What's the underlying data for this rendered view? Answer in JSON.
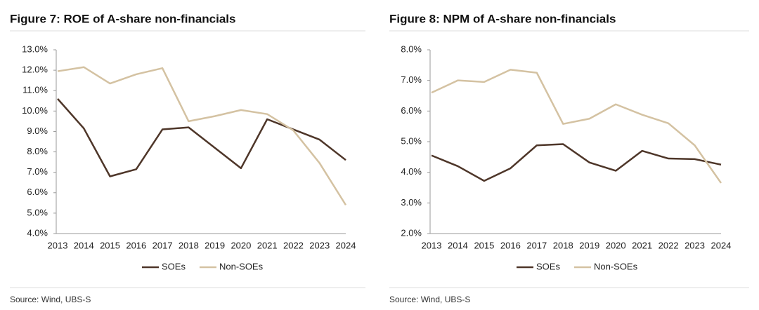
{
  "chart_data": [
    {
      "type": "line",
      "title": "Figure 7: ROE of A-share non-financials",
      "categories": [
        "2013",
        "2014",
        "2015",
        "2016",
        "2017",
        "2018",
        "2019",
        "2020",
        "2021",
        "2022",
        "2023",
        "2024"
      ],
      "series": [
        {
          "name": "SOEs",
          "color": "#4e3629",
          "values": [
            10.6,
            9.15,
            6.8,
            7.15,
            9.1,
            9.2,
            8.2,
            7.2,
            9.6,
            9.1,
            8.6,
            7.6
          ]
        },
        {
          "name": "Non-SOEs",
          "color": "#d4c2a2",
          "values": [
            11.95,
            12.15,
            11.35,
            11.8,
            12.1,
            9.5,
            9.75,
            10.05,
            9.85,
            9.05,
            7.45,
            5.4
          ]
        }
      ],
      "ylim": [
        4,
        13
      ],
      "yticks": [
        {
          "value": 4,
          "label": "4.0%"
        },
        {
          "value": 5,
          "label": "5.0%"
        },
        {
          "value": 6,
          "label": "6.0%"
        },
        {
          "value": 7,
          "label": "7.0%"
        },
        {
          "value": 8,
          "label": "8.0%"
        },
        {
          "value": 9,
          "label": "9.0%"
        },
        {
          "value": 10,
          "label": "10.0%"
        },
        {
          "value": 11,
          "label": "11.0%"
        },
        {
          "value": 12,
          "label": "12.0%"
        },
        {
          "value": 13,
          "label": "13.0%"
        }
      ],
      "grid": false,
      "legend": "bottom",
      "source": "Source: Wind, UBS-S"
    },
    {
      "type": "line",
      "title": "Figure 8: NPM of A-share non-financials",
      "categories": [
        "2013",
        "2014",
        "2015",
        "2016",
        "2017",
        "2018",
        "2019",
        "2020",
        "2021",
        "2022",
        "2023",
        "2024"
      ],
      "series": [
        {
          "name": "SOEs",
          "color": "#4e3629",
          "values": [
            4.55,
            4.2,
            3.72,
            4.13,
            4.88,
            4.92,
            4.32,
            4.05,
            4.7,
            4.45,
            4.43,
            4.25
          ]
        },
        {
          "name": "Non-SOEs",
          "color": "#d4c2a2",
          "values": [
            6.6,
            7.0,
            6.95,
            7.35,
            7.25,
            5.58,
            5.75,
            6.22,
            5.88,
            5.6,
            4.88,
            3.65
          ]
        }
      ],
      "ylim": [
        2,
        8
      ],
      "yticks": [
        {
          "value": 2,
          "label": "2.0%"
        },
        {
          "value": 3,
          "label": "3.0%"
        },
        {
          "value": 4,
          "label": "4.0%"
        },
        {
          "value": 5,
          "label": "5.0%"
        },
        {
          "value": 6,
          "label": "6.0%"
        },
        {
          "value": 7,
          "label": "7.0%"
        },
        {
          "value": 8,
          "label": "8.0%"
        }
      ],
      "grid": false,
      "legend": "bottom",
      "source": "Source: Wind, UBS-S"
    }
  ]
}
